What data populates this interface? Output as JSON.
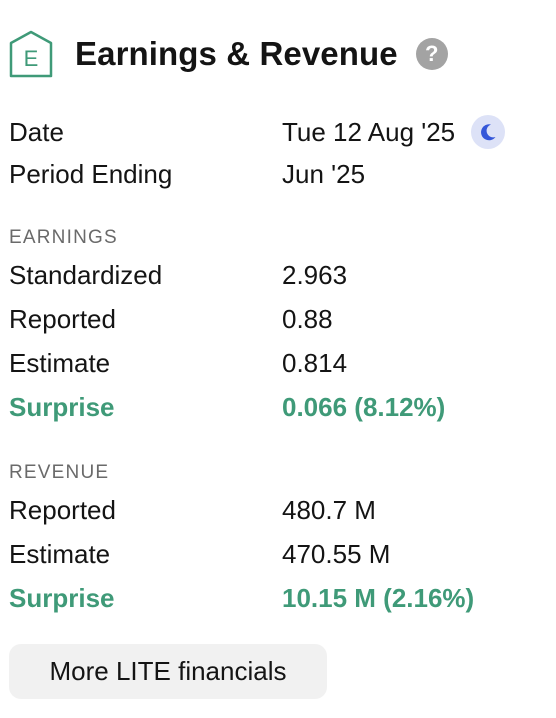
{
  "header": {
    "badge_letter": "E",
    "title": "Earnings & Revenue",
    "help_glyph": "?",
    "help_icon": "question-circle-icon",
    "accent_color": "#3f9a78"
  },
  "info": {
    "date_label": "Date",
    "date_value": "Tue 12 Aug '25",
    "date_icon": "moon-icon",
    "period_label": "Period Ending",
    "period_value": "Jun '25"
  },
  "earnings": {
    "section_title": "EARNINGS",
    "standardized_label": "Standardized",
    "standardized_value": "2.963",
    "reported_label": "Reported",
    "reported_value": "0.88",
    "estimate_label": "Estimate",
    "estimate_value": "0.814",
    "surprise_label": "Surprise",
    "surprise_value": "0.066 (8.12%)"
  },
  "revenue": {
    "section_title": "REVENUE",
    "reported_label": "Reported",
    "reported_value": "480.7 M",
    "estimate_label": "Estimate",
    "estimate_value": "470.55 M",
    "surprise_label": "Surprise",
    "surprise_value": "10.15 M (2.16%)"
  },
  "more_button_label": "More LITE financials",
  "colors": {
    "surprise": "#3f9a78",
    "moon_icon": "#3557d9",
    "moon_background": "#dde2f7",
    "help_icon": "#a3a3a3"
  }
}
